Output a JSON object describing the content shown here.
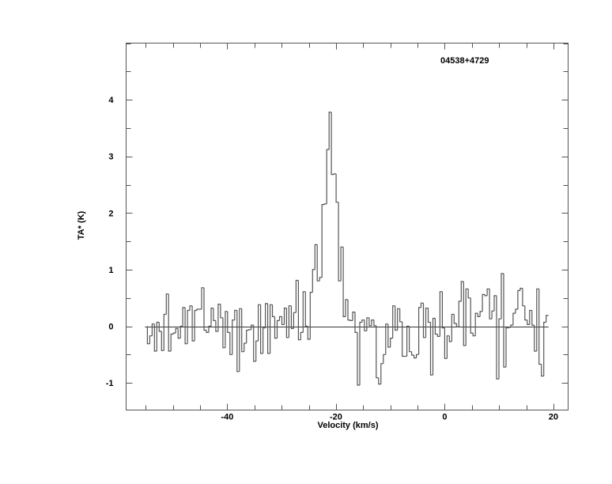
{
  "chart_data": {
    "type": "line",
    "style": "histogram-step",
    "title": "04538+4729",
    "xlabel": "Velocity (km/s)",
    "ylabel": "TA* (K)",
    "xlim": [
      -58.6,
      22.7
    ],
    "ylim": [
      -1.48,
      5.0
    ],
    "x_ticks": [
      -40,
      -20,
      0,
      20
    ],
    "x_tick_labels": [
      "-40",
      "-20",
      "0",
      "20"
    ],
    "x_minor_step": 5,
    "y_ticks": [
      -1,
      0,
      1,
      2,
      3,
      4
    ],
    "y_tick_labels": [
      "-1",
      "0",
      "1",
      "2",
      "3",
      "4"
    ],
    "y_minor_step": 0.5,
    "grid": false,
    "baseline": 0,
    "line_color": "#555555",
    "velocity_start": -54.69,
    "channel_width": 0.434,
    "values": [
      -0.31,
      -0.17,
      0.04,
      -0.44,
      0.07,
      -0.09,
      -0.43,
      0.21,
      0.57,
      -0.44,
      -0.14,
      -0.12,
      -0.04,
      -0.21,
      0.0,
      0.33,
      -0.31,
      0.28,
      0.36,
      -0.26,
      0.28,
      0.3,
      0.3,
      0.68,
      -0.07,
      -0.11,
      0.0,
      0.32,
      0.1,
      -0.09,
      0.39,
      0.15,
      -0.38,
      0.26,
      -0.11,
      -0.5,
      0.11,
      0.28,
      -0.8,
      0.31,
      -0.45,
      -0.3,
      -0.07,
      -0.06,
      0.02,
      -0.62,
      -0.26,
      0.38,
      -0.48,
      -0.03,
      0.4,
      -0.48,
      0.38,
      0.17,
      -0.21,
      0.1,
      0.17,
      0.03,
      0.32,
      -0.2,
      0.36,
      -0.04,
      0.24,
      0.81,
      -0.24,
      -0.11,
      0.61,
      0.0,
      -0.23,
      0.6,
      1.0,
      1.44,
      0.8,
      0.86,
      2.15,
      2.16,
      3.12,
      3.78,
      2.68,
      2.69,
      2.19,
      0.8,
      1.4,
      0.17,
      0.47,
      0.11,
      0.1,
      0.25,
      -0.11,
      -1.04,
      0.07,
      0.11,
      -0.08,
      0.15,
      0.01,
      0.11,
      0.01,
      -0.91,
      -1.02,
      -0.66,
      -0.5,
      0.04,
      -0.37,
      -0.21,
      0.36,
      -0.07,
      0.31,
      0.08,
      -0.53,
      -0.53,
      0.0,
      -0.45,
      -0.51,
      -0.56,
      -0.5,
      0.33,
      0.41,
      -0.2,
      0.32,
      0.07,
      -0.86,
      0.14,
      -0.14,
      -0.18,
      0.61,
      -0.03,
      -0.57,
      -0.17,
      -0.27,
      0.21,
      0.05,
      -0.01,
      0.44,
      0.79,
      -0.34,
      0.66,
      0.5,
      -0.12,
      -0.17,
      0.23,
      0.17,
      0.26,
      0.56,
      0.54,
      0.66,
      0.13,
      0.27,
      0.54,
      -0.93,
      0.13,
      0.93,
      -0.72,
      -0.03,
      -0.02,
      0.02,
      0.23,
      0.3,
      0.63,
      0.67,
      0.36,
      0.11,
      0.03,
      0.28,
      0.02,
      -0.44,
      0.66,
      -0.67,
      -0.88,
      0.07,
      0.19
    ]
  }
}
